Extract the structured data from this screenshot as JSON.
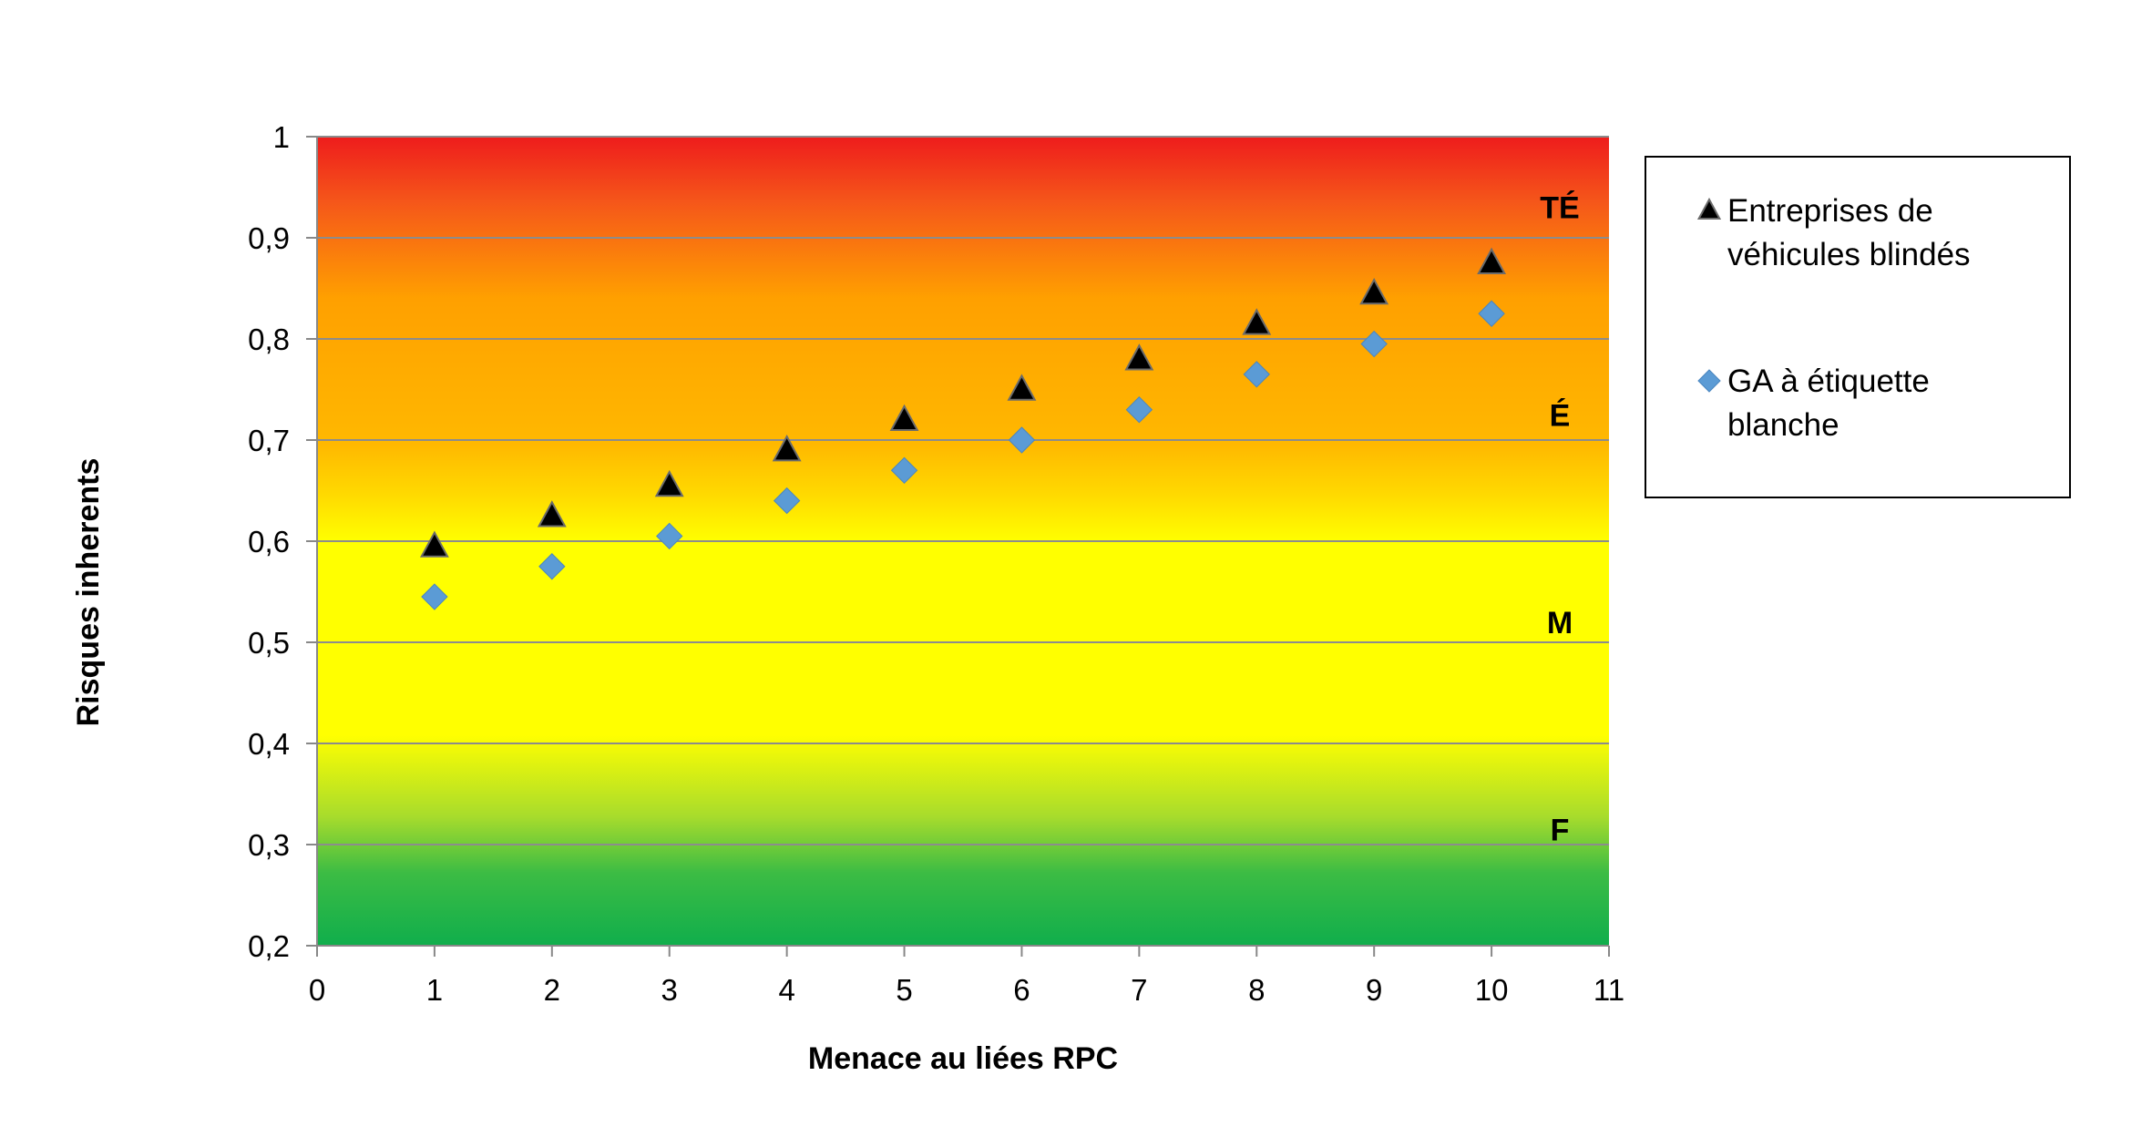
{
  "chart_data": {
    "type": "scatter",
    "title": "",
    "xlabel": "Menace au liées RPC",
    "ylabel": "Risques inherents",
    "xlim": [
      0,
      11
    ],
    "ylim": [
      0.2,
      1
    ],
    "x_ticks": [
      "0",
      "1",
      "2",
      "3",
      "4",
      "5",
      "6",
      "7",
      "8",
      "9",
      "10",
      "11"
    ],
    "y_ticks": [
      "0,2",
      "0,3",
      "0,4",
      "0,5",
      "0,6",
      "0,7",
      "0,8",
      "0,9",
      "1"
    ],
    "grid": "horizontal",
    "legend_position": "right",
    "background_zones": [
      {
        "label": "TÉ",
        "color": "#ee2a1c"
      },
      {
        "label": "É",
        "color": "#ffb400"
      },
      {
        "label": "M",
        "color": "#ffff00"
      },
      {
        "label": "F",
        "color": "#12b04a"
      }
    ],
    "series": [
      {
        "name": "Entreprises de véhicules blindés",
        "marker": "triangle",
        "color": "#000000",
        "x": [
          1,
          2,
          3,
          4,
          5,
          6,
          7,
          8,
          9,
          10
        ],
        "y": [
          0.595,
          0.625,
          0.655,
          0.69,
          0.72,
          0.75,
          0.78,
          0.815,
          0.845,
          0.875
        ]
      },
      {
        "name": "GA à étiquette blanche",
        "marker": "diamond",
        "color": "#5b9bd5",
        "x": [
          1,
          2,
          3,
          4,
          5,
          6,
          7,
          8,
          9,
          10
        ],
        "y": [
          0.545,
          0.575,
          0.605,
          0.64,
          0.67,
          0.7,
          0.73,
          0.765,
          0.795,
          0.825
        ]
      }
    ],
    "legend": {
      "items": [
        {
          "lines": [
            "Entreprises de",
            "véhicules blindés"
          ]
        },
        {
          "lines": [
            "GA à étiquette",
            "blanche"
          ]
        }
      ]
    }
  }
}
